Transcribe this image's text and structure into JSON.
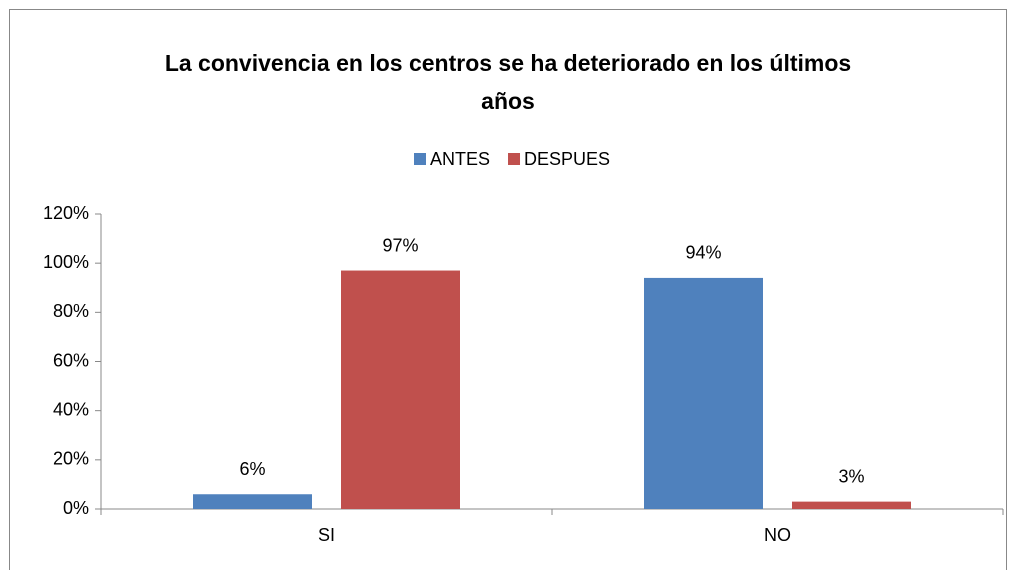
{
  "chart_data": {
    "type": "bar",
    "title": "La convivencia en los centros se ha deteriorado en los últimos años",
    "categories": [
      "SI",
      "NO"
    ],
    "series": [
      {
        "name": "ANTES",
        "color": "#4f81bd",
        "values": [
          6,
          94
        ],
        "value_labels": [
          "6%",
          "94%"
        ]
      },
      {
        "name": "DESPUES",
        "color": "#c0504d",
        "values": [
          97,
          3
        ],
        "value_labels": [
          "97%",
          "3%"
        ]
      }
    ],
    "ylim": [
      0,
      120
    ],
    "yticks": [
      {
        "value": 0,
        "label": "0%"
      },
      {
        "value": 20,
        "label": "20%"
      },
      {
        "value": 40,
        "label": "40%"
      },
      {
        "value": 60,
        "label": "60%"
      },
      {
        "value": 80,
        "label": "80%"
      },
      {
        "value": 100,
        "label": "100%"
      },
      {
        "value": 120,
        "label": "120%"
      }
    ],
    "grid": false,
    "legend": "top"
  }
}
